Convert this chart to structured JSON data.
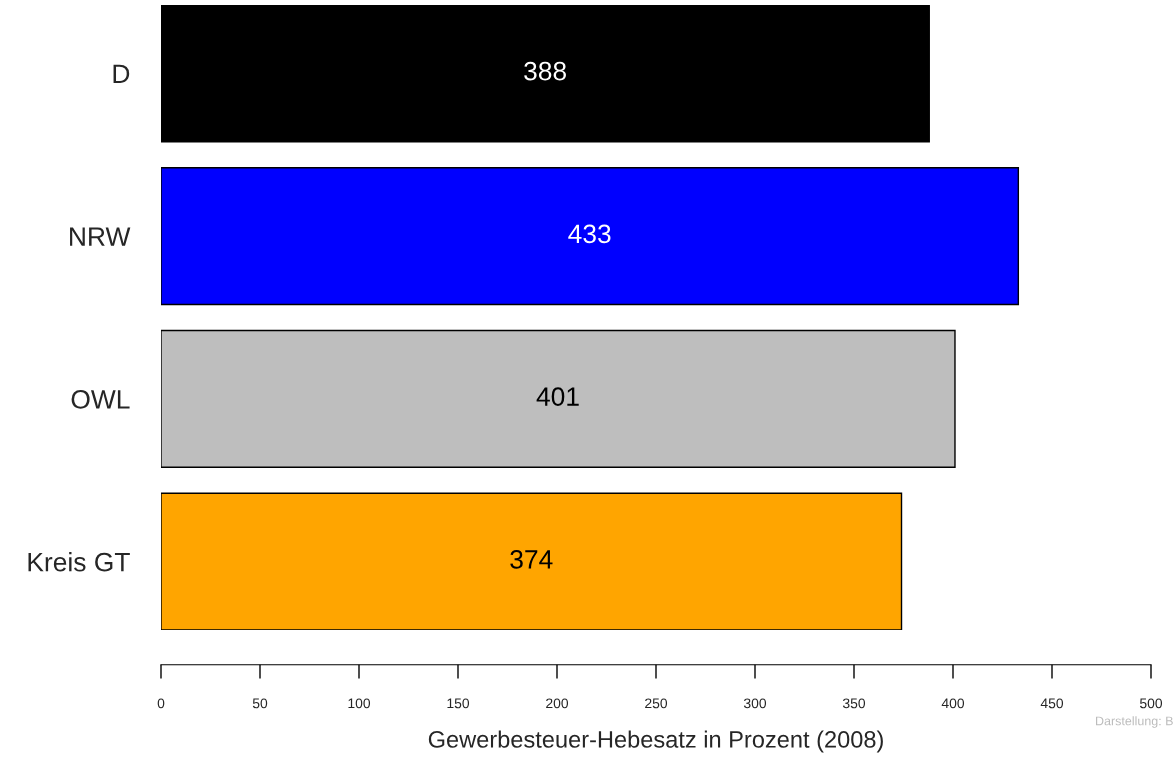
{
  "chart_data": {
    "type": "bar",
    "orientation": "horizontal",
    "categories": [
      "D",
      "NRW",
      "OWL",
      "Kreis GT"
    ],
    "values": [
      388,
      433,
      401,
      374
    ],
    "colors": [
      "#000000",
      "#0000ff",
      "#bebebe",
      "#ffa500"
    ],
    "xlim": [
      0,
      500
    ],
    "xticks": [
      0,
      50,
      100,
      150,
      200,
      250,
      300,
      350,
      400,
      450,
      500
    ],
    "xlabel": "Gewerbesteuer-Hebesatz in Prozent (2008)",
    "data_labels": true,
    "grid": false,
    "legend": false,
    "annotations": [
      "Darstellung: B"
    ]
  }
}
